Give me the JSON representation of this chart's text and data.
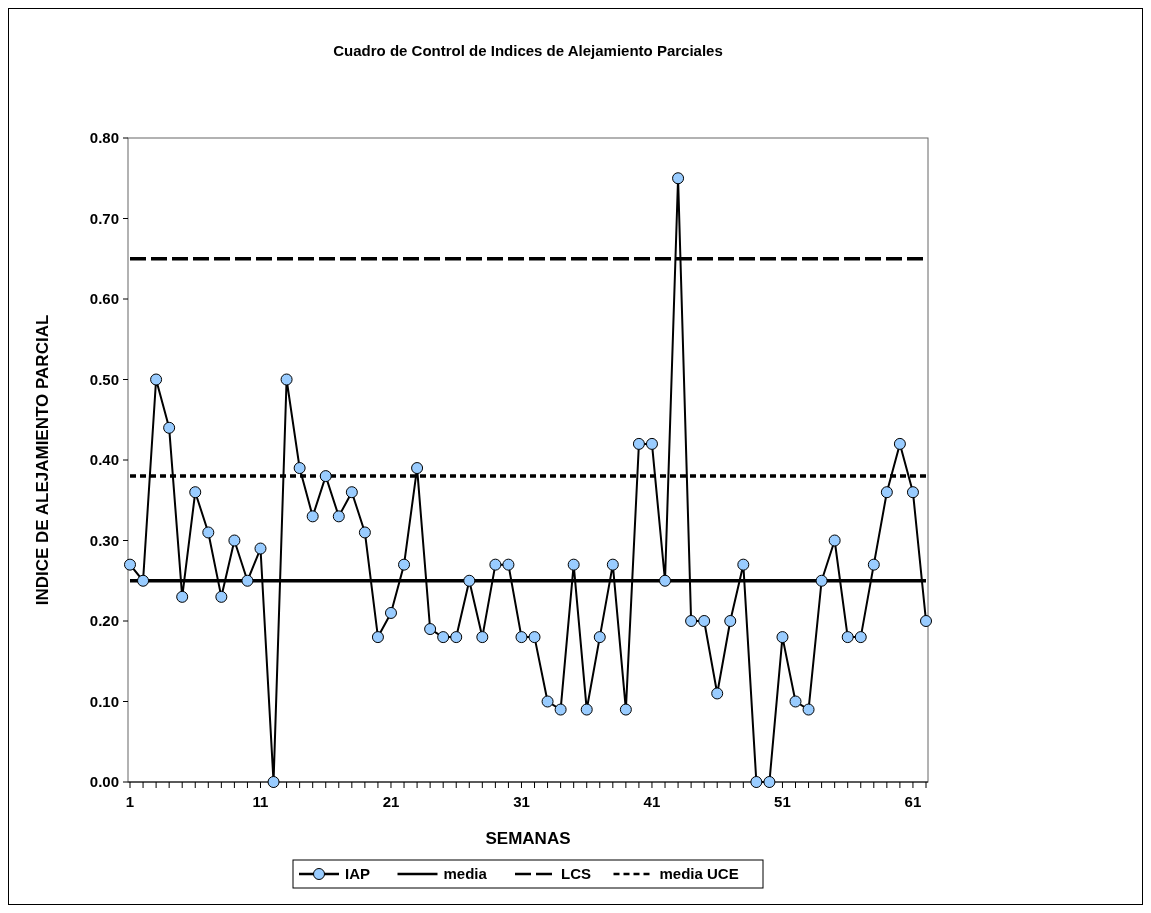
{
  "chart_data": {
    "type": "line",
    "title": "Cuadro de Control de Indices de Alejamiento Parciales",
    "xlabel": "SEMANAS",
    "ylabel": "INDICE DE ALEJAMIENTO PARCIAL",
    "categories": [
      "1",
      null,
      null,
      null,
      null,
      null,
      null,
      null,
      null,
      null,
      "11",
      null,
      null,
      null,
      null,
      null,
      null,
      null,
      null,
      null,
      "21",
      null,
      null,
      null,
      null,
      null,
      null,
      null,
      null,
      null,
      "31",
      null,
      null,
      null,
      null,
      null,
      null,
      null,
      null,
      null,
      "41",
      null,
      null,
      null,
      null,
      null,
      null,
      null,
      null,
      null,
      "51",
      null,
      null,
      null,
      null,
      null,
      null,
      null,
      null,
      null,
      "61",
      null
    ],
    "series": [
      {
        "name": "IAP",
        "color": "#99ccff",
        "marker": "circle",
        "values": [
          0.27,
          0.25,
          0.5,
          0.44,
          0.23,
          0.36,
          0.31,
          0.23,
          0.3,
          0.25,
          0.29,
          0.0,
          0.5,
          0.39,
          0.33,
          0.38,
          0.33,
          0.36,
          0.31,
          0.18,
          0.21,
          0.27,
          0.39,
          0.19,
          0.18,
          0.18,
          0.25,
          0.18,
          0.27,
          0.27,
          0.18,
          0.18,
          0.1,
          0.09,
          0.27,
          0.09,
          0.18,
          0.27,
          0.09,
          0.42,
          0.42,
          0.25,
          0.75,
          0.2,
          0.2,
          0.11,
          0.2,
          0.27,
          0.0,
          0.0,
          0.18,
          0.1,
          0.09,
          0.25,
          0.3,
          0.18,
          0.18,
          0.27,
          0.36,
          0.42,
          0.36,
          0.2
        ]
      },
      {
        "name": "media",
        "color": "#000000",
        "marker": "none",
        "line_style": "solid",
        "values": [
          0.25,
          0.25,
          0.25,
          0.25,
          0.25,
          0.25,
          0.25,
          0.25,
          0.25,
          0.25,
          0.25,
          0.25,
          0.25,
          0.25,
          0.25,
          0.25,
          0.25,
          0.25,
          0.25,
          0.25,
          0.25,
          0.25,
          0.25,
          0.25,
          0.25,
          0.25,
          0.25,
          0.25,
          0.25,
          0.25,
          0.25,
          0.25,
          0.25,
          0.25,
          0.25,
          0.25,
          0.25,
          0.25,
          0.25,
          0.25,
          0.25,
          0.25,
          0.25,
          0.25,
          0.25,
          0.25,
          0.25,
          0.25,
          0.25,
          0.25,
          0.25,
          0.25,
          0.25,
          0.25,
          0.25,
          0.25,
          0.25,
          0.25,
          0.25,
          0.25,
          0.25,
          0.25
        ]
      },
      {
        "name": "LCS",
        "color": "#000000",
        "marker": "none",
        "line_style": "dashed",
        "values": [
          0.65,
          0.65,
          0.65,
          0.65,
          0.65,
          0.65,
          0.65,
          0.65,
          0.65,
          0.65,
          0.65,
          0.65,
          0.65,
          0.65,
          0.65,
          0.65,
          0.65,
          0.65,
          0.65,
          0.65,
          0.65,
          0.65,
          0.65,
          0.65,
          0.65,
          0.65,
          0.65,
          0.65,
          0.65,
          0.65,
          0.65,
          0.65,
          0.65,
          0.65,
          0.65,
          0.65,
          0.65,
          0.65,
          0.65,
          0.65,
          0.65,
          0.65,
          0.65,
          0.65,
          0.65,
          0.65,
          0.65,
          0.65,
          0.65,
          0.65,
          0.65,
          0.65,
          0.65,
          0.65,
          0.65,
          0.65,
          0.65,
          0.65,
          0.65,
          0.65,
          0.65,
          0.65
        ]
      },
      {
        "name": "media UCE",
        "color": "#000000",
        "marker": "none",
        "line_style": "dotted",
        "values": [
          0.38,
          0.38,
          0.38,
          0.38,
          0.38,
          0.38,
          0.38,
          0.38,
          0.38,
          0.38,
          0.38,
          0.38,
          0.38,
          0.38,
          0.38,
          0.38,
          0.38,
          0.38,
          0.38,
          0.38,
          0.38,
          0.38,
          0.38,
          0.38,
          0.38,
          0.38,
          0.38,
          0.38,
          0.38,
          0.38,
          0.38,
          0.38,
          0.38,
          0.38,
          0.38,
          0.38,
          0.38,
          0.38,
          0.38,
          0.38,
          0.38,
          0.38,
          0.38,
          0.38,
          0.38,
          0.38,
          0.38,
          0.38,
          0.38,
          0.38,
          0.38,
          0.38,
          0.38,
          0.38,
          0.38,
          0.38,
          0.38,
          0.38,
          0.38,
          0.38,
          0.38,
          0.38
        ]
      }
    ],
    "ylim": [
      0,
      0.8
    ],
    "yticks": [
      {
        "value": 0,
        "label": "0.00"
      },
      {
        "value": 0.1,
        "label": "0.10"
      },
      {
        "value": 0.2,
        "label": "0.20"
      },
      {
        "value": 0.3,
        "label": "0.30"
      },
      {
        "value": 0.4,
        "label": "0.40"
      },
      {
        "value": 0.5,
        "label": "0.50"
      },
      {
        "value": 0.6,
        "label": "0.60"
      },
      {
        "value": 0.7,
        "label": "0.70"
      },
      {
        "value": 0.8,
        "label": "0.80"
      }
    ],
    "grid": false,
    "legend": "bottom"
  }
}
